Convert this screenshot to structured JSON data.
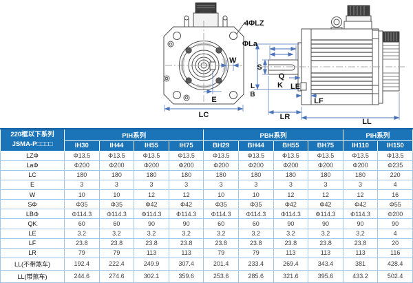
{
  "drawing": {
    "labels": {
      "lz": "4ΦLZ",
      "la": "ΦLa",
      "w": "W",
      "e": "E",
      "lc": "LC",
      "s": "S",
      "q": "Q",
      "k": "K",
      "le": "LE",
      "lf": "LF",
      "lr": "LR",
      "ll": "LL",
      "l": "L",
      "b": "B"
    }
  },
  "table": {
    "corner": {
      "line1": "220框以下系列",
      "line2": "JSMA-P□□□□"
    },
    "groups": [
      {
        "label": "PIH系列",
        "span": 4
      },
      {
        "label": "PBH系列",
        "span": 4
      },
      {
        "label": "PIH系列",
        "span": 2
      }
    ],
    "models": [
      "IH30",
      "IH44",
      "IH55",
      "IH75",
      "BH29",
      "BH44",
      "BH55",
      "BH75",
      "IH110",
      "IH150"
    ],
    "rows": [
      {
        "label": "LZΦ",
        "values": [
          "Φ13.5",
          "Φ13.5",
          "Φ13.5",
          "Φ13.5",
          "Φ13.5",
          "Φ13.5",
          "Φ13.5",
          "Φ13.5",
          "Φ13.5",
          "Φ13.5"
        ]
      },
      {
        "label": "LaΦ",
        "values": [
          "Φ200",
          "Φ200",
          "Φ200",
          "Φ200",
          "Φ200",
          "Φ200",
          "Φ200",
          "Φ200",
          "Φ200",
          "Φ235"
        ]
      },
      {
        "label": "LC",
        "values": [
          "180",
          "180",
          "180",
          "180",
          "180",
          "180",
          "180",
          "180",
          "180",
          "220"
        ]
      },
      {
        "label": "E",
        "values": [
          "3",
          "3",
          "3",
          "3",
          "3",
          "3",
          "3",
          "3",
          "3",
          "4"
        ]
      },
      {
        "label": "W",
        "values": [
          "10",
          "10",
          "12",
          "12",
          "10",
          "10",
          "12",
          "12",
          "12",
          "16"
        ]
      },
      {
        "label": "SΦ",
        "values": [
          "Φ35",
          "Φ35",
          "Φ42",
          "Φ42",
          "Φ35",
          "Φ35",
          "Φ42",
          "Φ42",
          "Φ42",
          "Φ55"
        ]
      },
      {
        "label": "LBΦ",
        "values": [
          "Φ114.3",
          "Φ114.3",
          "Φ114.3",
          "Φ114.3",
          "Φ114.3",
          "Φ114.3",
          "Φ114.3",
          "Φ114.3",
          "Φ114.3",
          "Φ200"
        ]
      },
      {
        "label": "QK",
        "values": [
          "60",
          "60",
          "90",
          "90",
          "60",
          "60",
          "90",
          "90",
          "90",
          "90"
        ]
      },
      {
        "label": "LE",
        "values": [
          "3.2",
          "3.2",
          "3.2",
          "3.2",
          "3.2",
          "3.2",
          "3.2",
          "3.2",
          "3.2",
          "4"
        ]
      },
      {
        "label": "LF",
        "values": [
          "23.8",
          "23.8",
          "23.8",
          "23.8",
          "23.8",
          "23.8",
          "23.8",
          "23.8",
          "23.8",
          "20"
        ]
      },
      {
        "label": "LR",
        "values": [
          "79",
          "79",
          "113",
          "113",
          "79",
          "79",
          "113",
          "113",
          "113",
          "116"
        ]
      },
      {
        "label": "LL(不带煞车)",
        "values": [
          "192.4",
          "222.4",
          "249.9",
          "307.4",
          "201.4",
          "233.4",
          "269.4",
          "343.4",
          "381",
          "428.4"
        ]
      },
      {
        "label": "LL(带煞车)",
        "values": [
          "244.6",
          "274.6",
          "302.1",
          "359.6",
          "253.6",
          "285.6",
          "321.6",
          "395.6",
          "433.2",
          "502.4"
        ]
      }
    ]
  },
  "colors": {
    "header_bg": "#1b74b8",
    "grid_line": "#9fc5e8",
    "outer_border": "#2e75b6",
    "dimension_line": "#4a72b8"
  }
}
